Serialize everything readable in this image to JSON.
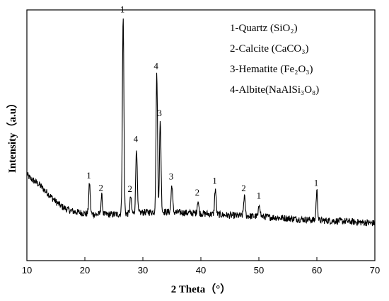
{
  "chart_data": {
    "type": "line",
    "title": "",
    "xlabel": "2 Theta（°）",
    "ylabel": "Intensity（a.u）",
    "xlim": [
      10,
      70
    ],
    "x_ticks": [
      10,
      20,
      30,
      40,
      50,
      60,
      70
    ],
    "y_ticks_shown": false,
    "grid": false,
    "legend_position": "top-right",
    "legend": [
      {
        "id": "1",
        "text": "1-Quartz (SiO₂)"
      },
      {
        "id": "2",
        "text": "2-Calcite (CaCO₃)"
      },
      {
        "id": "3",
        "text": "3-Hematite (Fe₂O₃)"
      },
      {
        "id": "4",
        "text": "4-Albite(NaAlSi₃O₈)"
      }
    ],
    "peaks": [
      {
        "x": 20.8,
        "y": 31,
        "label": "1"
      },
      {
        "x": 22.9,
        "y": 19,
        "label": "2"
      },
      {
        "x": 26.6,
        "y": 200,
        "label": "1"
      },
      {
        "x": 27.9,
        "y": 17,
        "label": "2"
      },
      {
        "x": 28.9,
        "y": 67,
        "label": "4"
      },
      {
        "x": 32.4,
        "y": 140,
        "label": "4"
      },
      {
        "x": 33.0,
        "y": 92,
        "label": "3"
      },
      {
        "x": 35.0,
        "y": 28,
        "label": "3"
      },
      {
        "x": 39.5,
        "y": 13,
        "label": "2"
      },
      {
        "x": 42.5,
        "y": 26,
        "label": "1"
      },
      {
        "x": 47.5,
        "y": 20,
        "label": "2"
      },
      {
        "x": 50.1,
        "y": 13,
        "label": "1"
      },
      {
        "x": 60.0,
        "y": 30,
        "label": "1"
      }
    ],
    "background": [
      [
        10.0,
        48
      ],
      [
        10.5,
        44
      ],
      [
        11.0,
        42
      ],
      [
        12.0,
        38
      ],
      [
        13.0,
        32
      ],
      [
        14.0,
        26
      ],
      [
        15.0,
        20
      ],
      [
        16.0,
        15
      ],
      [
        17.0,
        12
      ],
      [
        18.0,
        10
      ],
      [
        20.0,
        8
      ],
      [
        22.0,
        7
      ],
      [
        25.0,
        7
      ],
      [
        28.0,
        8
      ],
      [
        30.0,
        9
      ],
      [
        33.0,
        10
      ],
      [
        36.0,
        9
      ],
      [
        40.0,
        8
      ],
      [
        45.0,
        6
      ],
      [
        50.0,
        5
      ],
      [
        55.0,
        3
      ],
      [
        60.0,
        1
      ],
      [
        65.0,
        0
      ],
      [
        70.0,
        -2
      ]
    ],
    "ylim": [
      -40,
      215
    ]
  }
}
